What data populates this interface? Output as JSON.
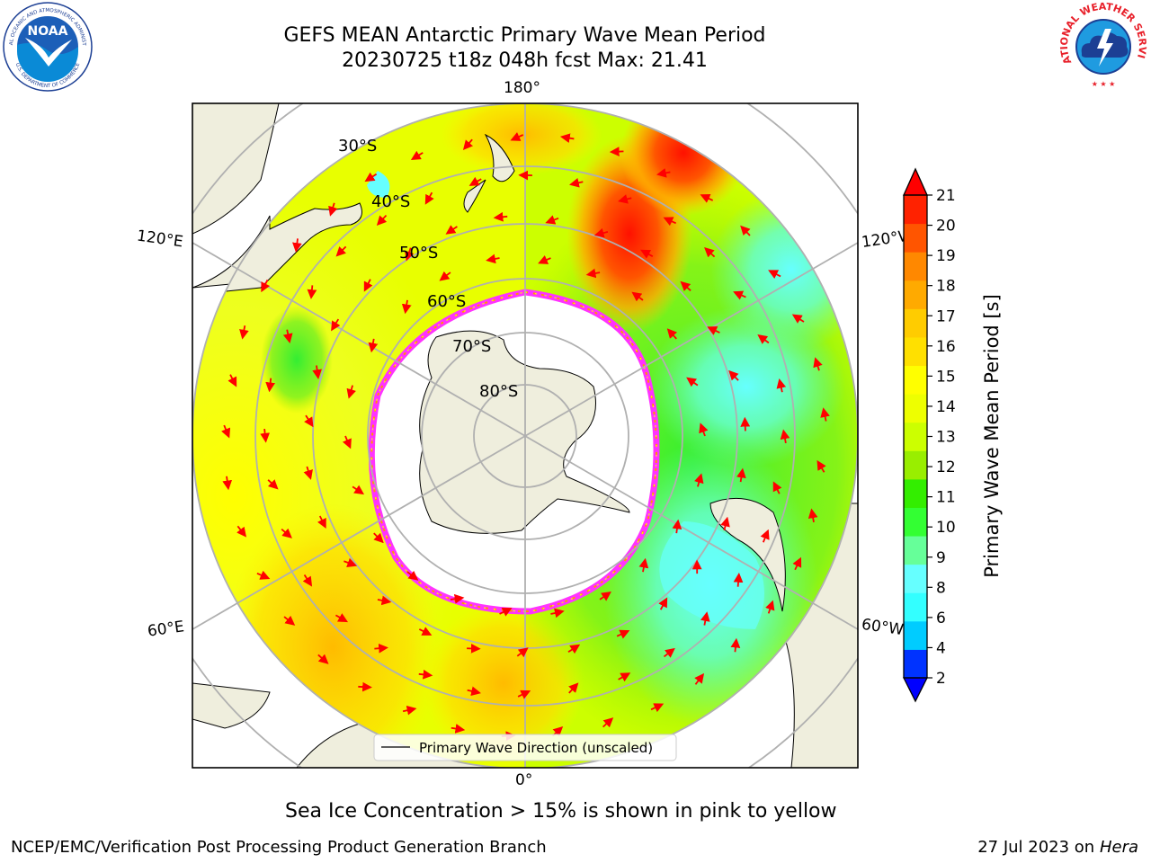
{
  "title": {
    "line1": "GEFS MEAN Antarctic Primary Wave Mean Period",
    "line2": "20230725 t18z 048h fcst   Max: 21.41"
  },
  "map": {
    "projection": "south-polar-stereographic",
    "meridian_labels": {
      "top": "180°",
      "bottom": "0°",
      "upper_left": "120°E",
      "lower_left": "60°E",
      "upper_right": "120°W",
      "lower_right": "60°W"
    },
    "parallel_labels": [
      "30°S",
      "40°S",
      "50°S",
      "60°S",
      "70°S",
      "80°S"
    ],
    "legend_label": "Primary Wave Direction (unscaled)",
    "arrow_color": "#ff0000",
    "land_color": "#efeedd",
    "ice_edge_colors": [
      "#ff33ff",
      "#ff9900",
      "#ffff00"
    ]
  },
  "colorbar": {
    "label": "Primary Wave Mean Period [s]",
    "ticks": [
      "2",
      "4",
      "6",
      "8",
      "9",
      "10",
      "11",
      "12",
      "13",
      "14",
      "15",
      "16",
      "17",
      "18",
      "19",
      "20",
      "21"
    ],
    "colors": [
      "#0033ff",
      "#00ccff",
      "#33ffff",
      "#66ffff",
      "#66ff99",
      "#33ff33",
      "#33ee00",
      "#99ee00",
      "#ccff00",
      "#eeff00",
      "#ffff00",
      "#ffe000",
      "#ffcc00",
      "#ffaa00",
      "#ff8800",
      "#ff5500",
      "#ff2200"
    ],
    "under_color": "#0000ff",
    "over_color": "#ff0000"
  },
  "caption": "Sea Ice Concentration > 15% is shown in pink to yellow",
  "footer": {
    "left": "NCEP/EMC/Verification Post Processing Product Generation Branch",
    "right_date": "27 Jul 2023 on ",
    "right_host": "Hera"
  },
  "logos": {
    "noaa": "NOAA",
    "nws": "NATIONAL WEATHER SERVICE",
    "noaa_ring_top": "NATIONAL OCEANIC AND ATMOSPHERIC ADMINISTRATION",
    "noaa_ring_bottom": "U.S. DEPARTMENT OF COMMERCE"
  }
}
